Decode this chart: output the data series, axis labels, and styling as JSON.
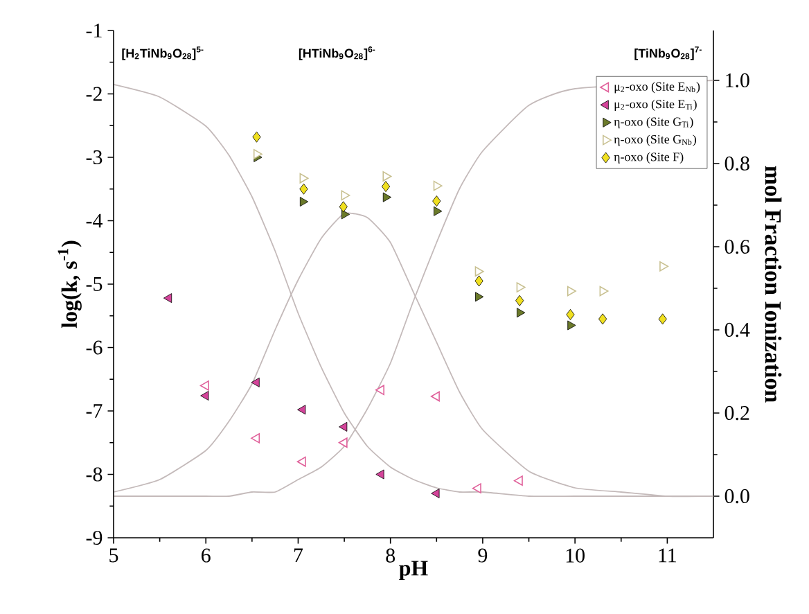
{
  "chart_data": {
    "type": "scatter",
    "xlabel": "pH",
    "ylabel": "log(k, s$^{-1}$)",
    "y2label": "mol Fraction Ionization",
    "xlim": [
      5,
      11.5
    ],
    "xticks": [
      5,
      6,
      7,
      8,
      9,
      10,
      11
    ],
    "ylim": [
      -9,
      -1
    ],
    "yticks": [
      -9,
      -8,
      -7,
      -6,
      -5,
      -4,
      -3,
      -2,
      -1
    ],
    "y2lim": [
      -0.1,
      1.12
    ],
    "y2ticks": [
      {
        "value": 0,
        "label": "0.0"
      },
      {
        "value": 0.2,
        "label": "0.2"
      },
      {
        "value": 0.4,
        "label": "0.4"
      },
      {
        "value": 0.6,
        "label": "0.6"
      },
      {
        "value": 0.8,
        "label": "0.8"
      },
      {
        "value": 1.0,
        "label": "1.0"
      }
    ],
    "legend": "top right",
    "grid": false,
    "annotations": [
      "[H$_{2}$TiNb$_{9}$O$_{28}$]$^{5-}$",
      "[HTiNb$_{9}$O$_{28}$]$^{6-}$",
      "[TiNb$_{9}$O$_{28}$]$^{7-}$"
    ],
    "series": [
      {
        "name": "μ$_{2}$-oxo (Site E$_{Nb}$)",
        "color": "#e0609a",
        "marker": "triangle",
        "x": [
          6.0,
          6.55,
          7.05,
          7.5,
          7.9,
          8.5,
          8.95,
          9.4
        ],
        "values": [
          -6.6,
          -7.43,
          -7.8,
          -7.5,
          -6.67,
          -6.77,
          -8.22,
          -8.1
        ]
      },
      {
        "name": "μ$_{2}$-oxo (Site E$_{Ti}$)",
        "color": "#d4449a",
        "marker": "triangle",
        "x": [
          5.6,
          6.0,
          6.55,
          7.05,
          7.5,
          7.9,
          8.5
        ],
        "values": [
          -5.22,
          -6.76,
          -6.55,
          -6.98,
          -7.25,
          -8.0,
          -8.3
        ]
      },
      {
        "name": "η-oxo (Site G$_{Ti}$)",
        "color": "#6b7a2a",
        "marker": "triangle",
        "x": [
          6.55,
          7.05,
          7.5,
          7.95,
          8.5,
          8.95,
          9.4,
          9.95
        ],
        "values": [
          -3.0,
          -3.7,
          -3.9,
          -3.63,
          -3.85,
          -5.2,
          -5.45,
          -5.65
        ]
      },
      {
        "name": "η-oxo (Site G$_{Nb}$)",
        "color": "#c8c090",
        "marker": "triangle",
        "x": [
          6.55,
          7.05,
          7.5,
          7.95,
          8.5,
          8.95,
          9.4,
          9.95,
          10.3,
          10.95
        ],
        "values": [
          -2.95,
          -3.33,
          -3.6,
          -3.3,
          -3.45,
          -4.8,
          -5.05,
          -5.11,
          -5.11,
          -4.72
        ]
      },
      {
        "name": "η-oxo (Site F)",
        "color": "#f0e020",
        "marker": "diamond",
        "x": [
          6.55,
          7.06,
          7.49,
          7.95,
          8.5,
          8.96,
          9.4,
          9.95,
          10.3,
          10.95
        ],
        "values": [
          -2.68,
          -3.5,
          -3.78,
          -3.46,
          -3.69,
          -4.95,
          -5.26,
          -5.48,
          -5.55,
          -5.55
        ]
      },
      {
        "type": "line",
        "axis": "y2",
        "color": "#c4baba",
        "marker": "none",
        "x": [
          5,
          5.5,
          6,
          6.25,
          6.5,
          6.75,
          7,
          7.25,
          7.5,
          7.75,
          8,
          8.25,
          8.5,
          8.75,
          9,
          9.5,
          10,
          10.5,
          11,
          11.5
        ],
        "values": [
          0.99,
          0.96,
          0.89,
          0.82,
          0.72,
          0.59,
          0.44,
          0.31,
          0.2,
          0.12,
          0.07,
          0.04,
          0.02,
          0.01,
          0.01,
          0,
          0,
          0,
          0,
          0
        ]
      },
      {
        "type": "line",
        "axis": "y2",
        "color": "#c4baba",
        "marker": "none",
        "x": [
          5,
          5.5,
          6,
          6.25,
          6.5,
          6.75,
          7,
          7.25,
          7.5,
          7.75,
          8,
          8.25,
          8.5,
          8.75,
          9,
          9.5,
          10,
          10.5,
          11,
          11.5
        ],
        "values": [
          0.01,
          0.04,
          0.11,
          0.18,
          0.27,
          0.4,
          0.52,
          0.62,
          0.68,
          0.67,
          0.61,
          0.49,
          0.37,
          0.25,
          0.16,
          0.06,
          0.02,
          0.01,
          0,
          0
        ]
      },
      {
        "type": "line",
        "axis": "y2",
        "color": "#c4baba",
        "marker": "none",
        "x": [
          5,
          5.5,
          6,
          6.25,
          6.5,
          6.75,
          7,
          7.25,
          7.5,
          7.75,
          8,
          8.25,
          8.5,
          8.75,
          9,
          9.5,
          10,
          10.5,
          11,
          11.5
        ],
        "values": [
          0,
          0,
          0,
          0,
          0.01,
          0.01,
          0.04,
          0.07,
          0.12,
          0.21,
          0.32,
          0.47,
          0.61,
          0.74,
          0.83,
          0.94,
          0.98,
          null,
          null,
          1.0
        ]
      }
    ]
  }
}
